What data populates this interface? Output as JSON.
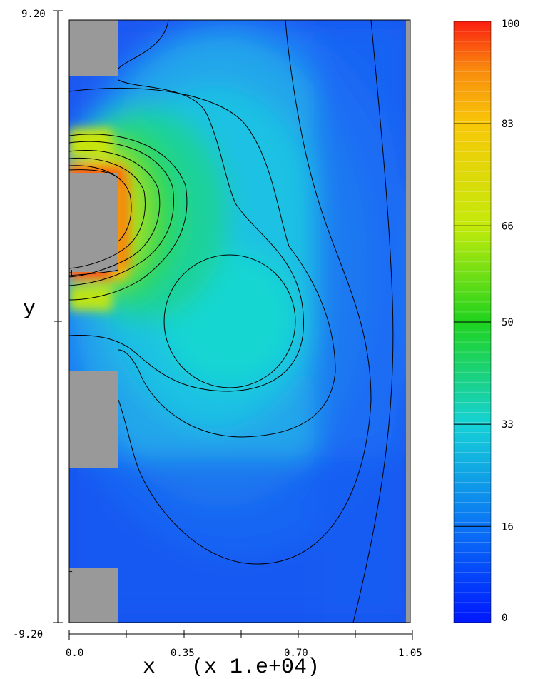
{
  "chart_data": {
    "type": "heatmap",
    "title": "",
    "xlabel": "x",
    "x_multiplier": "(x 1.e+04)",
    "ylabel": "y",
    "x_ticks": [
      "0.0",
      "0.35",
      "0.70",
      "1.05"
    ],
    "y_ticks": [
      "9.20",
      "-9.20"
    ],
    "xlim": [
      0.0,
      1.05
    ],
    "ylim": [
      -9.2,
      9.2
    ],
    "colorbar": {
      "ticks": [
        "100",
        "83",
        "66",
        "50",
        "33",
        "16",
        "0"
      ],
      "range": [
        0,
        100
      ],
      "colormap": "jet"
    },
    "point_labels": [
      "H",
      "L"
    ],
    "colors": {
      "masked_region": "#999999",
      "contour_line": "#000000",
      "background": "#ffffff"
    }
  }
}
